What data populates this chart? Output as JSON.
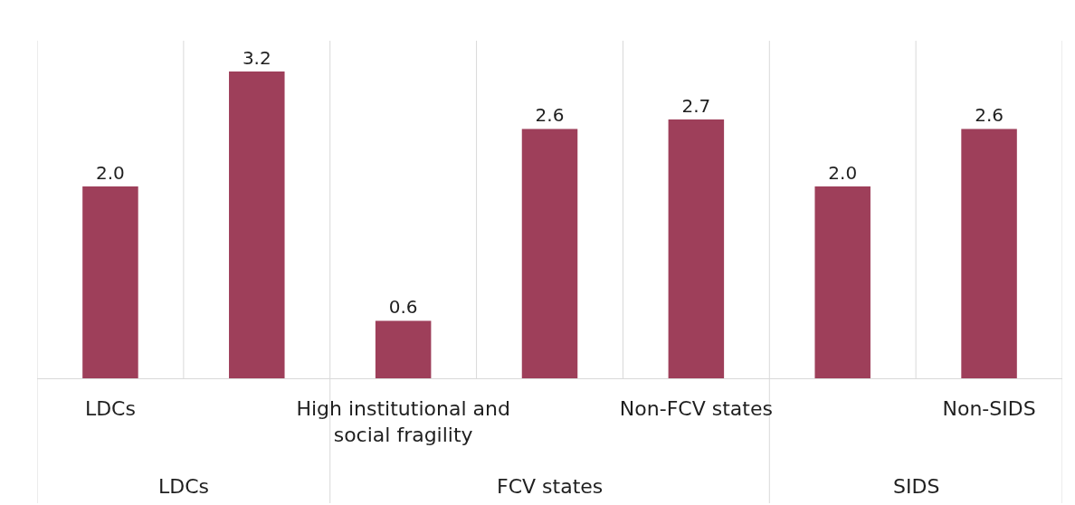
{
  "chart_data": {
    "type": "bar",
    "categories": [
      "LDCs",
      null,
      "High institutional and social fragility",
      null,
      "Non-FCV states",
      null,
      "Non-SIDS"
    ],
    "values": [
      2.0,
      3.2,
      0.6,
      2.6,
      2.7,
      2.0,
      2.6
    ],
    "value_labels": [
      "2.0",
      "3.2",
      "0.6",
      "2.6",
      "2.7",
      "2.0",
      "2.6"
    ],
    "color": "#9e3f5a",
    "grid": "x",
    "annotations": [
      "LDCs",
      "FCV states",
      "SIDS"
    ]
  }
}
